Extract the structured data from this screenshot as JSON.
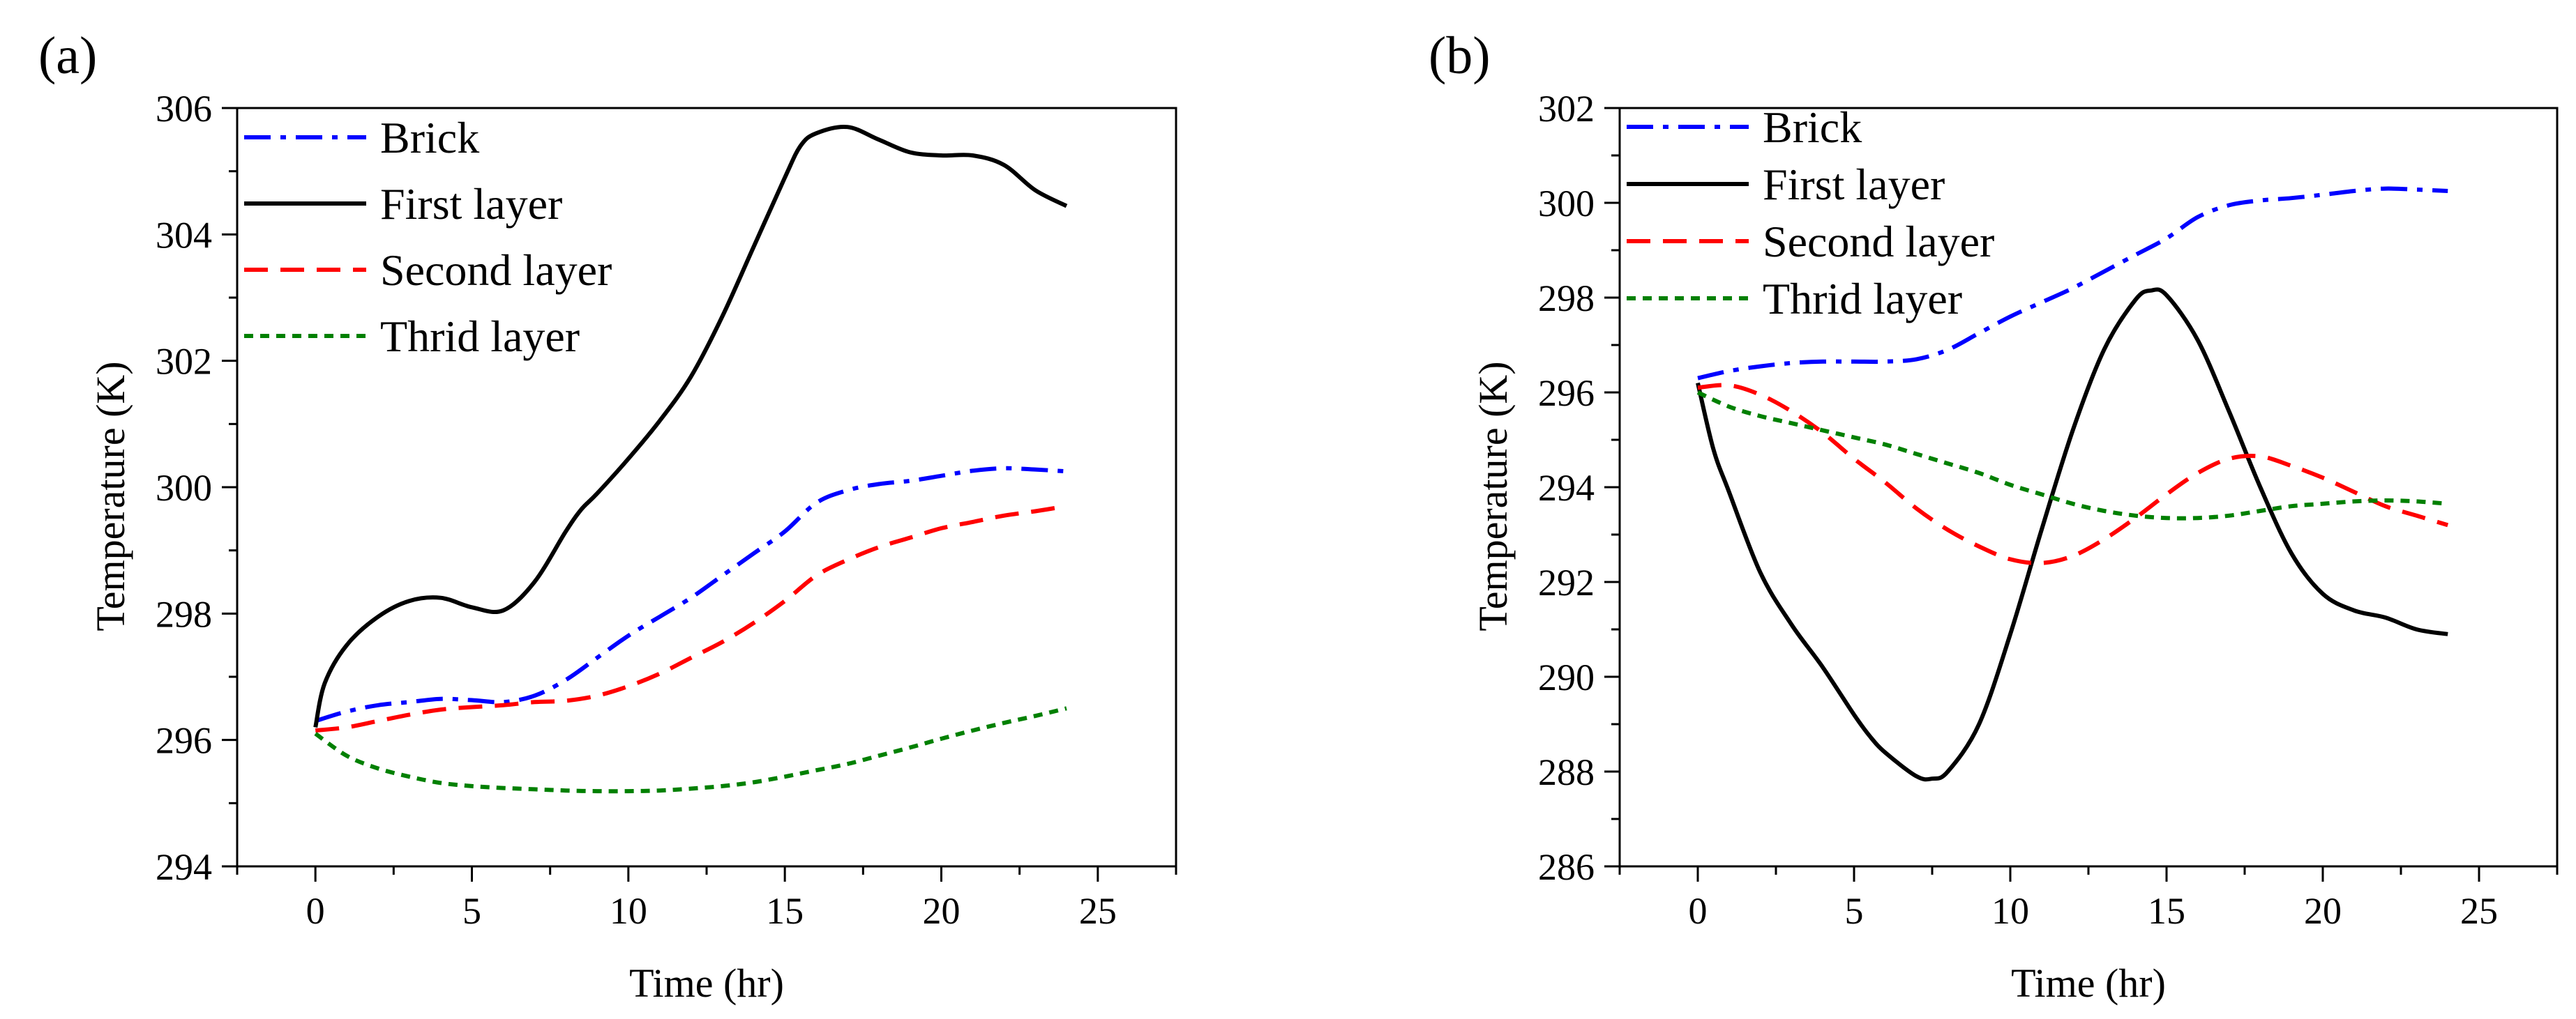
{
  "figure": {
    "panels": [
      {
        "panel_label": "(a)",
        "chart": {
          "type": "line",
          "xlabel": "Time (hr)",
          "ylabel": "Temperature (K)",
          "xlim": [
            -2.5,
            27.5
          ],
          "ylim": [
            294,
            306
          ],
          "xticks": [
            0,
            5,
            10,
            15,
            20,
            25
          ],
          "yticks": [
            294,
            296,
            298,
            300,
            302,
            304,
            306
          ],
          "legend_position": "top-left",
          "grid": false,
          "series": [
            {
              "name": "Brick",
              "color": "#0000ff",
              "style": "dash-dot",
              "x": [
                0,
                1,
                2,
                3,
                4,
                5,
                6,
                7,
                8,
                9,
                10,
                11,
                12,
                13,
                14,
                15,
                16,
                17,
                18,
                19,
                20,
                21,
                22,
                23,
                24
              ],
              "y": [
                296.3,
                296.45,
                296.55,
                296.6,
                296.65,
                296.63,
                296.6,
                296.7,
                296.95,
                297.3,
                297.65,
                297.95,
                298.25,
                298.6,
                298.95,
                299.3,
                299.75,
                299.95,
                300.05,
                300.1,
                300.18,
                300.26,
                300.3,
                300.28,
                300.25
              ]
            },
            {
              "name": "First layer",
              "color": "#000000",
              "style": "solid",
              "x": [
                0,
                0.3,
                1,
                2,
                3,
                4,
                5,
                6,
                7,
                8,
                8.5,
                9,
                10,
                11,
                12,
                13,
                14,
                15,
                15.5,
                16,
                17,
                18,
                19,
                20,
                21,
                22,
                23,
                24
              ],
              "y": [
                296.2,
                296.9,
                297.5,
                297.95,
                298.2,
                298.25,
                298.1,
                298.05,
                298.5,
                299.3,
                299.65,
                299.9,
                300.45,
                301.05,
                301.75,
                302.7,
                303.8,
                304.9,
                305.4,
                305.6,
                305.7,
                305.5,
                305.3,
                305.25,
                305.25,
                305.1,
                304.7,
                304.45
              ]
            },
            {
              "name": "Second layer",
              "color": "#ff0000",
              "style": "dashed",
              "x": [
                0,
                1,
                2,
                3,
                4,
                5,
                6,
                7,
                8,
                9,
                10,
                11,
                12,
                13,
                14,
                15,
                16,
                17,
                18,
                19,
                20,
                21,
                22,
                23,
                24
              ],
              "y": [
                296.15,
                296.2,
                296.3,
                296.4,
                296.48,
                296.52,
                296.55,
                296.6,
                296.62,
                296.7,
                296.85,
                297.05,
                297.3,
                297.55,
                297.85,
                298.2,
                298.6,
                298.85,
                299.05,
                299.2,
                299.35,
                299.45,
                299.55,
                299.62,
                299.7
              ]
            },
            {
              "name": "Thrid layer",
              "color": "#008000",
              "style": "dotted",
              "x": [
                0,
                1,
                2,
                3,
                4,
                5,
                6,
                7,
                8,
                9,
                10,
                11,
                12,
                13,
                14,
                15,
                16,
                17,
                18,
                19,
                20,
                21,
                22,
                23,
                24
              ],
              "y": [
                296.1,
                295.75,
                295.55,
                295.42,
                295.32,
                295.27,
                295.24,
                295.22,
                295.2,
                295.19,
                295.19,
                295.2,
                295.23,
                295.27,
                295.33,
                295.42,
                295.52,
                295.62,
                295.75,
                295.88,
                296.02,
                296.15,
                296.27,
                296.38,
                296.5
              ]
            }
          ]
        }
      },
      {
        "panel_label": "(b)",
        "chart": {
          "type": "line",
          "xlabel": "Time (hr)",
          "ylabel": "Temperature (K)",
          "xlim": [
            -2.5,
            27.5
          ],
          "ylim": [
            286,
            302
          ],
          "xticks": [
            0,
            5,
            10,
            15,
            20,
            25
          ],
          "yticks": [
            286,
            288,
            290,
            292,
            294,
            296,
            298,
            300,
            302
          ],
          "legend_position": "top-left",
          "grid": false,
          "series": [
            {
              "name": "Brick",
              "color": "#0000ff",
              "style": "dash-dot",
              "x": [
                0,
                1,
                2,
                3,
                4,
                5,
                6,
                7,
                8,
                9,
                10,
                11,
                12,
                13,
                14,
                15,
                16,
                17,
                18,
                19,
                20,
                21,
                22,
                23,
                24
              ],
              "y": [
                296.3,
                296.45,
                296.55,
                296.62,
                296.65,
                296.65,
                296.65,
                296.7,
                296.9,
                297.25,
                297.6,
                297.9,
                298.2,
                298.55,
                298.9,
                299.25,
                299.7,
                299.95,
                300.05,
                300.1,
                300.17,
                300.25,
                300.3,
                300.28,
                300.25
              ]
            },
            {
              "name": "First layer",
              "color": "#000000",
              "style": "solid",
              "x": [
                0,
                0.5,
                1,
                2,
                3,
                4,
                5,
                5.5,
                6,
                7,
                7.5,
                8,
                9,
                10,
                11,
                12,
                13,
                14,
                14.5,
                15,
                16,
                17,
                18,
                19,
                20,
                21,
                22,
                23,
                24
              ],
              "y": [
                296.2,
                294.8,
                293.9,
                292.2,
                291.1,
                290.2,
                289.2,
                288.75,
                288.4,
                287.9,
                287.85,
                288.0,
                289.0,
                290.9,
                293.1,
                295.2,
                296.9,
                297.95,
                298.15,
                298.05,
                297.1,
                295.6,
                294.0,
                292.6,
                291.75,
                291.4,
                291.25,
                291.0,
                290.9
              ]
            },
            {
              "name": "Second layer",
              "color": "#ff0000",
              "style": "dashed",
              "x": [
                0,
                1,
                2,
                3,
                4,
                5,
                6,
                7,
                8,
                9,
                10,
                11,
                12,
                13,
                14,
                15,
                16,
                17,
                18,
                19,
                20,
                21,
                22,
                23,
                24
              ],
              "y": [
                296.1,
                296.15,
                295.95,
                295.6,
                295.15,
                294.6,
                294.1,
                293.55,
                293.1,
                292.75,
                292.48,
                292.4,
                292.55,
                292.9,
                293.35,
                293.85,
                294.3,
                294.6,
                294.65,
                294.45,
                294.2,
                293.9,
                293.6,
                293.4,
                293.2
              ]
            },
            {
              "name": "Thrid layer",
              "color": "#008000",
              "style": "dotted",
              "x": [
                0,
                1,
                2,
                3,
                4,
                5,
                6,
                7,
                8,
                9,
                10,
                11,
                12,
                13,
                14,
                15,
                16,
                17,
                18,
                19,
                20,
                21,
                22,
                23,
                24
              ],
              "y": [
                296.0,
                295.7,
                295.5,
                295.35,
                295.2,
                295.05,
                294.9,
                294.7,
                294.5,
                294.3,
                294.05,
                293.85,
                293.65,
                293.5,
                293.4,
                293.35,
                293.35,
                293.4,
                293.5,
                293.6,
                293.65,
                293.7,
                293.72,
                293.7,
                293.65
              ]
            }
          ]
        }
      }
    ]
  }
}
